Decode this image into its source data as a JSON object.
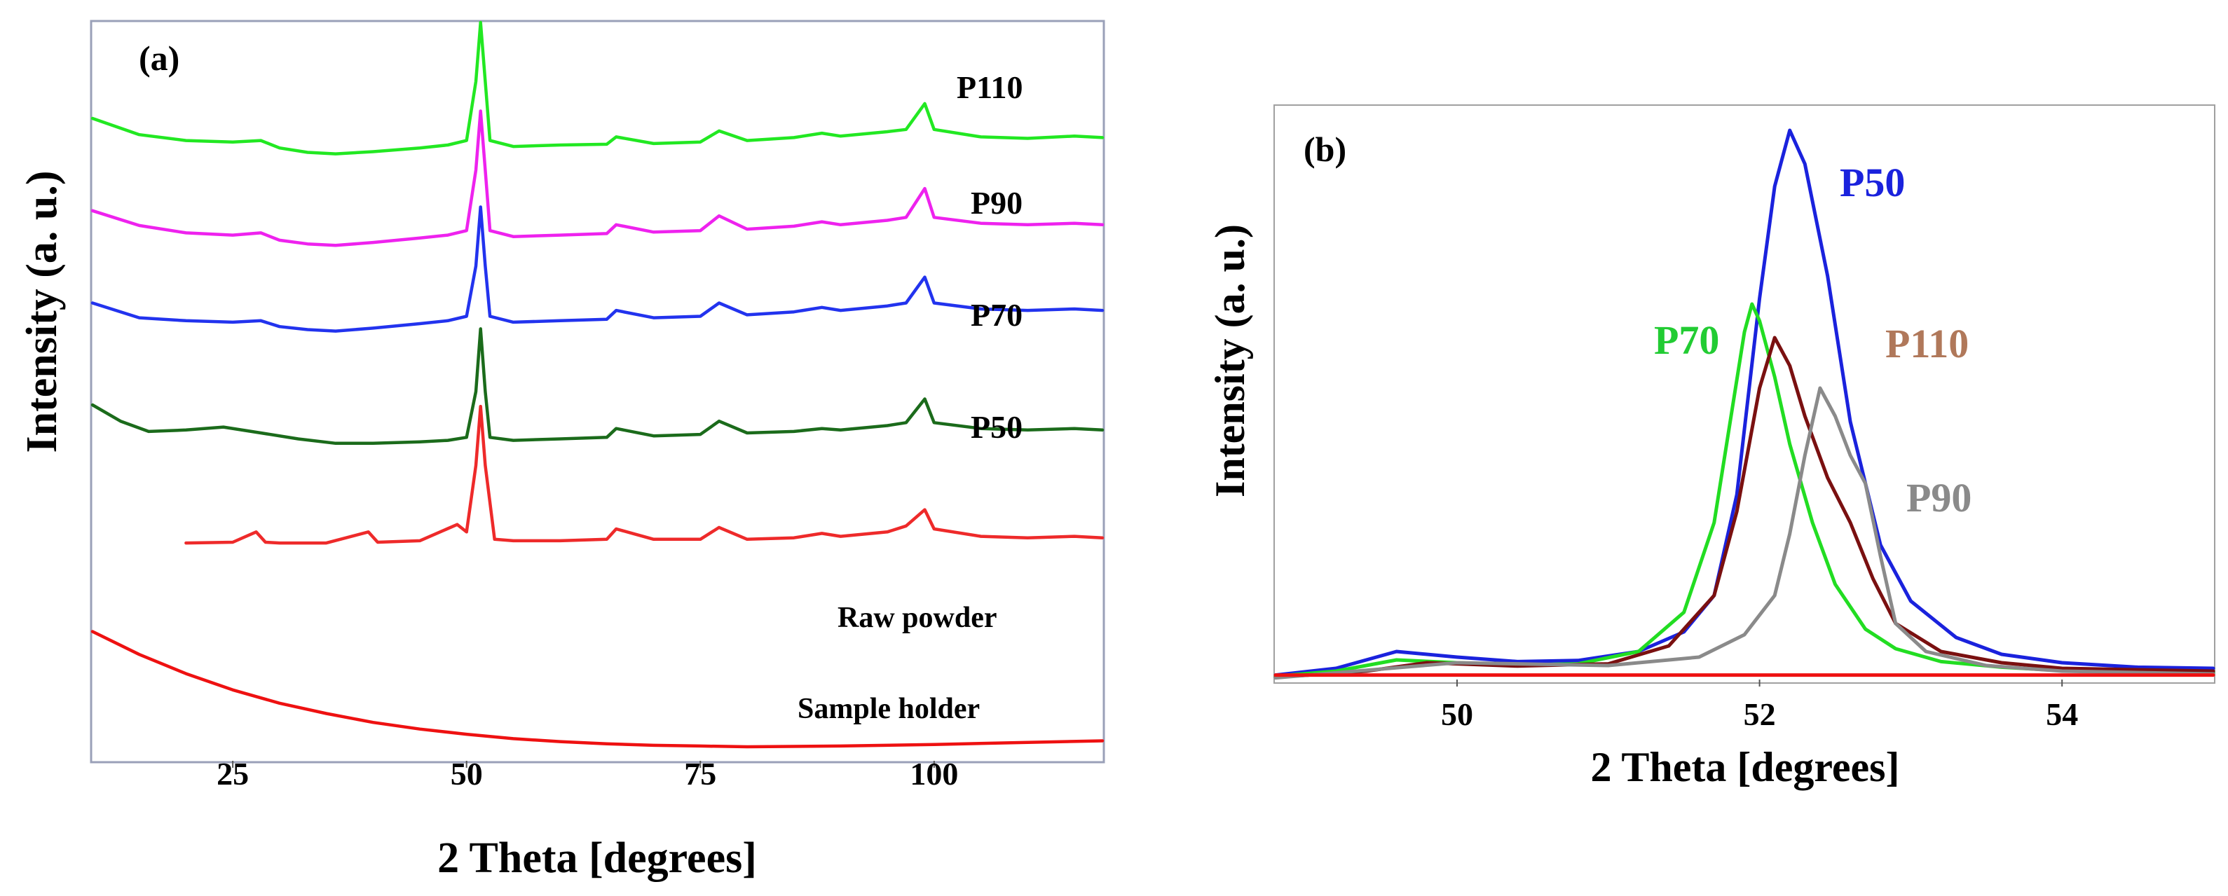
{
  "chart_data": [
    {
      "type": "line",
      "panel_label": "(a)",
      "xlabel": "2 Theta [degrees]",
      "ylabel": "Intensity (a. u.)",
      "xlim": [
        10,
        118
      ],
      "ylim": [
        0,
        100
      ],
      "xticks": [
        25,
        50,
        75,
        100
      ],
      "xtick_labels": [
        "25",
        "50",
        "75",
        "100"
      ],
      "grid": false,
      "notes": "Stacked (offset) XRD patterns; y values are offset intensities in arbitrary units.",
      "series": [
        {
          "name": "P110",
          "color": "#22e822",
          "x": [
            10,
            15,
            20,
            25,
            28,
            30,
            33,
            36,
            40,
            45,
            48,
            50,
            51,
            51.5,
            52,
            52.5,
            55,
            60,
            65,
            66,
            70,
            75,
            77,
            80,
            85,
            88,
            90,
            95,
            97,
            99,
            100,
            105,
            110,
            115,
            118
          ],
          "y": [
            87,
            84.8,
            84,
            83.8,
            84,
            83,
            82.4,
            82.2,
            82.5,
            83,
            83.4,
            84,
            92,
            100,
            92,
            84,
            83.2,
            83.4,
            83.5,
            84.5,
            83.6,
            83.8,
            85.3,
            84,
            84.4,
            85,
            84.6,
            85.2,
            85.5,
            89,
            85.5,
            84.5,
            84.3,
            84.6,
            84.4
          ]
        },
        {
          "name": "P90",
          "color": "#ee22ee",
          "x": [
            10,
            15,
            20,
            25,
            28,
            30,
            33,
            36,
            40,
            45,
            48,
            50,
            51,
            51.5,
            52,
            52.5,
            55,
            60,
            65,
            66,
            70,
            75,
            77,
            80,
            85,
            88,
            90,
            95,
            97,
            99,
            100,
            105,
            110,
            115,
            118
          ],
          "y": [
            74.5,
            72.5,
            71.5,
            71.2,
            71.5,
            70.5,
            70,
            69.8,
            70.2,
            70.8,
            71.2,
            71.8,
            80,
            88,
            80,
            71.8,
            71,
            71.2,
            71.4,
            72.6,
            71.6,
            71.8,
            73.8,
            72,
            72.4,
            73,
            72.6,
            73.2,
            73.6,
            77.5,
            73.6,
            72.8,
            72.6,
            72.8,
            72.6
          ]
        },
        {
          "name": "P70",
          "color": "#2233ee",
          "x": [
            10,
            15,
            20,
            25,
            28,
            30,
            33,
            36,
            40,
            45,
            48,
            50,
            51,
            51.5,
            52,
            52.5,
            55,
            60,
            65,
            66,
            70,
            75,
            77,
            80,
            85,
            88,
            90,
            95,
            97,
            99,
            100,
            105,
            110,
            115,
            118
          ],
          "y": [
            62,
            60,
            59.6,
            59.4,
            59.6,
            58.8,
            58.4,
            58.2,
            58.6,
            59.2,
            59.6,
            60.2,
            67,
            75,
            67,
            60.2,
            59.4,
            59.6,
            59.8,
            61,
            60,
            60.2,
            62,
            60.4,
            60.8,
            61.4,
            61,
            61.6,
            62,
            65.5,
            62,
            61.2,
            61,
            61.2,
            61
          ]
        },
        {
          "name": "P50",
          "color": "#1b6b1b",
          "x": [
            10,
            13,
            16,
            20,
            24,
            28,
            32,
            36,
            40,
            45,
            48,
            50,
            51,
            51.5,
            52,
            52.5,
            55,
            60,
            65,
            66,
            70,
            75,
            77,
            80,
            85,
            88,
            90,
            95,
            97,
            99,
            100,
            105,
            110,
            115,
            118
          ],
          "y": [
            48.2,
            46,
            44.6,
            44.8,
            45.2,
            44.4,
            43.6,
            43,
            43,
            43.2,
            43.4,
            43.8,
            50,
            58.5,
            50,
            43.8,
            43.4,
            43.6,
            43.8,
            45,
            44,
            44.2,
            46,
            44.4,
            44.6,
            45,
            44.8,
            45.4,
            45.8,
            49,
            45.8,
            45,
            44.8,
            45,
            44.8
          ]
        },
        {
          "name": "Raw powder",
          "color": "#ee2a2a",
          "x": [
            20,
            25,
            27.5,
            28.5,
            30,
            35,
            39.5,
            40.5,
            45,
            49,
            50,
            51,
            51.5,
            52,
            53,
            55,
            60,
            65,
            66,
            70,
            75,
            77,
            80,
            85,
            88,
            90,
            95,
            97,
            99,
            100,
            105,
            110,
            115,
            118
          ],
          "y": [
            29.5,
            29.6,
            31,
            29.6,
            29.5,
            29.5,
            31,
            29.6,
            29.8,
            32,
            31,
            40,
            48,
            40,
            30,
            29.8,
            29.8,
            30,
            31.4,
            30,
            30,
            31.6,
            30,
            30.2,
            30.8,
            30.4,
            31,
            31.8,
            34,
            31.4,
            30.4,
            30.2,
            30.4,
            30.2
          ]
        },
        {
          "name": "Sample holder",
          "color": "#ee1111",
          "x": [
            10,
            15,
            20,
            25,
            30,
            35,
            40,
            45,
            50,
            55,
            60,
            65,
            70,
            75,
            80,
            90,
            100,
            110,
            118
          ],
          "y": [
            17.5,
            14.4,
            11.8,
            9.6,
            7.8,
            6.4,
            5.2,
            4.3,
            3.6,
            3,
            2.6,
            2.3,
            2.1,
            2,
            1.9,
            2,
            2.2,
            2.5,
            2.7
          ]
        }
      ]
    },
    {
      "type": "line",
      "panel_label": "(b)",
      "xlabel": "2 Theta [degrees]",
      "ylabel": "Intensity (a. u.)",
      "xlim": [
        48.8,
        55
      ],
      "ylim": [
        0,
        100
      ],
      "xticks": [
        50,
        52,
        54
      ],
      "xtick_labels": [
        "50",
        "52",
        "54"
      ],
      "grid": false,
      "series": [
        {
          "name": "P50",
          "color": "#1a22dd",
          "x": [
            48.8,
            49.2,
            49.6,
            50,
            50.4,
            50.8,
            51.2,
            51.5,
            51.7,
            51.85,
            52,
            52.1,
            52.2,
            52.3,
            52.45,
            52.6,
            52.8,
            53,
            53.3,
            53.6,
            54,
            54.5,
            55
          ],
          "y": [
            0.8,
            2,
            5,
            4,
            3.2,
            3.4,
            5,
            8.5,
            15,
            33,
            68,
            88,
            98,
            92,
            72,
            46,
            24,
            14,
            7.5,
            4.5,
            3,
            2.2,
            2
          ]
        },
        {
          "name": "P70",
          "color": "#22dd22",
          "x": [
            48.8,
            49.2,
            49.6,
            50,
            50.4,
            50.8,
            51.2,
            51.5,
            51.7,
            51.8,
            51.9,
            51.95,
            52,
            52.1,
            52.2,
            52.35,
            52.5,
            52.7,
            52.9,
            53.2,
            53.6,
            54,
            55
          ],
          "y": [
            0.6,
            1.5,
            3.5,
            3,
            2.6,
            2.8,
            5,
            12,
            28,
            45,
            62,
            67,
            64,
            54,
            42,
            28,
            17,
            9,
            5.5,
            3.2,
            2.2,
            1.6,
            1.2
          ]
        },
        {
          "name": "P110",
          "color": "#7a1010",
          "x": [
            48.8,
            49.4,
            49.8,
            50.4,
            51,
            51.4,
            51.7,
            51.85,
            52,
            52.1,
            52.2,
            52.3,
            52.45,
            52.6,
            52.75,
            52.9,
            53.2,
            53.6,
            54,
            55
          ],
          "y": [
            0.4,
            1.5,
            3,
            2.4,
            2.8,
            6,
            15,
            30,
            52,
            61,
            56,
            47,
            36,
            28,
            18,
            10,
            5,
            3,
            2,
            1.5
          ]
        },
        {
          "name": "P90",
          "color": "#8a8a8a",
          "x": [
            48.8,
            50,
            51,
            51.6,
            51.9,
            52.1,
            52.2,
            52.3,
            52.4,
            52.5,
            52.6,
            52.7,
            52.8,
            52.9,
            53.1,
            53.5,
            54,
            55
          ],
          "y": [
            0.3,
            3,
            2.5,
            4,
            8,
            15,
            26,
            40,
            52,
            47,
            40,
            35,
            22,
            10,
            5,
            2.5,
            1.5,
            1
          ]
        },
        {
          "name": "",
          "color": "#ee1111",
          "x": [
            48.8,
            55
          ],
          "y": [
            0.8,
            0.8
          ]
        }
      ]
    }
  ]
}
